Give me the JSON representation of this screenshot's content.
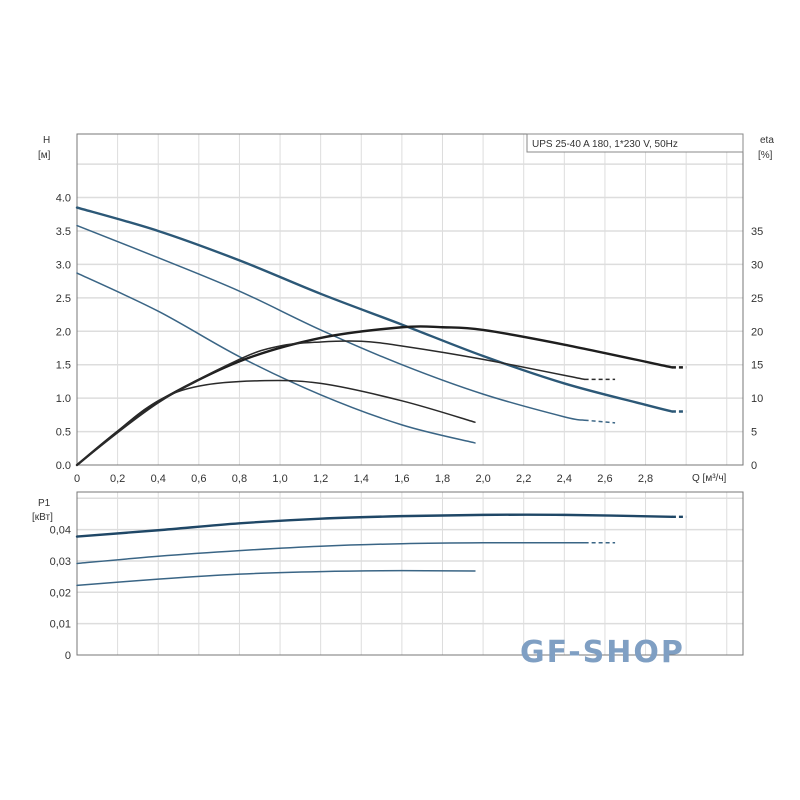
{
  "chart_data": [
    {
      "type": "line",
      "legend_box": "UPS 25-40 A 180, 1*230 V, 50Hz",
      "xlabel": "Q [м³/ч]",
      "ylabel": "H",
      "ylabel_unit": "[м]",
      "y2label": "eta",
      "y2label_unit": "[%]",
      "xlim": [
        0,
        3.28
      ],
      "ylim": [
        0,
        4.95
      ],
      "y2lim": [
        0,
        49.5
      ],
      "grid": true,
      "x_ticks": [
        "0",
        "0,2",
        "0,4",
        "0,6",
        "0,8",
        "1,0",
        "1,2",
        "1,4",
        "1,6",
        "1,8",
        "2,0",
        "2,2",
        "2,4",
        "2,6",
        "2,8"
      ],
      "y_ticks": [
        "0.0",
        "0.5",
        "1.0",
        "1.5",
        "2.0",
        "2.5",
        "3.0",
        "3.5",
        "4.0"
      ],
      "y2_ticks": [
        "0",
        "5",
        "10",
        "15",
        "20",
        "25",
        "30",
        "35"
      ],
      "series": [
        {
          "axis": "H",
          "color": "#2c5877",
          "width": 2.4,
          "points": [
            [
              0,
              3.85
            ],
            [
              0.4,
              3.5
            ],
            [
              0.8,
              3.06
            ],
            [
              1.2,
              2.56
            ],
            [
              1.6,
              2.1
            ],
            [
              2.0,
              1.63
            ],
            [
              2.4,
              1.22
            ],
            [
              2.8,
              0.9
            ],
            [
              2.93,
              0.8
            ]
          ],
          "dashed_to": [
            3.0,
            0.8
          ]
        },
        {
          "axis": "H",
          "color": "#3a6585",
          "width": 1.5,
          "points": [
            [
              0,
              3.58
            ],
            [
              0.4,
              3.1
            ],
            [
              0.8,
              2.6
            ],
            [
              1.2,
              2.02
            ],
            [
              1.6,
              1.5
            ],
            [
              2.0,
              1.06
            ],
            [
              2.4,
              0.72
            ],
            [
              2.5,
              0.67
            ]
          ],
          "dashed_to": [
            2.65,
            0.63
          ]
        },
        {
          "axis": "H",
          "color": "#3a6585",
          "width": 1.5,
          "points": [
            [
              0,
              2.87
            ],
            [
              0.4,
              2.3
            ],
            [
              0.8,
              1.62
            ],
            [
              1.2,
              1.05
            ],
            [
              1.6,
              0.6
            ],
            [
              1.96,
              0.33
            ]
          ]
        },
        {
          "axis": "eta",
          "color": "#1e1e1e",
          "width": 2.4,
          "points": [
            [
              0,
              0
            ],
            [
              0.2,
              5
            ],
            [
              0.4,
              9.5
            ],
            [
              0.8,
              15.5
            ],
            [
              1.2,
              19
            ],
            [
              1.6,
              20.6
            ],
            [
              1.8,
              20.6
            ],
            [
              2.0,
              20.2
            ],
            [
              2.4,
              18
            ],
            [
              2.93,
              14.6
            ]
          ],
          "dashed_to": [
            3.0,
            14.6
          ]
        },
        {
          "axis": "eta",
          "color": "#2a2a2a",
          "width": 1.5,
          "points": [
            [
              0,
              0
            ],
            [
              0.4,
              9.3
            ],
            [
              0.8,
              15.8
            ],
            [
              1.0,
              17.8
            ],
            [
              1.2,
              18.4
            ],
            [
              1.4,
              18.5
            ],
            [
              1.6,
              17.8
            ],
            [
              2.0,
              15.8
            ],
            [
              2.5,
              12.8
            ]
          ],
          "dashed_to": [
            2.65,
            12.8
          ]
        },
        {
          "axis": "eta",
          "color": "#2a2a2a",
          "width": 1.5,
          "points": [
            [
              0,
              0
            ],
            [
              0.2,
              5
            ],
            [
              0.4,
              9.6
            ],
            [
              0.6,
              11.8
            ],
            [
              0.9,
              12.6
            ],
            [
              1.2,
              12.2
            ],
            [
              1.6,
              9.6
            ],
            [
              1.96,
              6.4
            ]
          ]
        }
      ]
    },
    {
      "type": "line",
      "ylabel": "P1",
      "ylabel_unit": "[кВт]",
      "xlim": [
        0,
        3.28
      ],
      "ylim": [
        0,
        0.052
      ],
      "grid": true,
      "y_ticks": [
        "0",
        "0,01",
        "0,02",
        "0,03",
        "0,04"
      ],
      "series": [
        {
          "color": "#1f4766",
          "width": 2.4,
          "points": [
            [
              0,
              0.0378
            ],
            [
              0.4,
              0.0398
            ],
            [
              0.8,
              0.042
            ],
            [
              1.2,
              0.0435
            ],
            [
              1.6,
              0.0443
            ],
            [
              2.0,
              0.0447
            ],
            [
              2.4,
              0.0447
            ],
            [
              2.93,
              0.0441
            ]
          ],
          "dashed_to": [
            3.0,
            0.0441
          ]
        },
        {
          "color": "#3a6585",
          "width": 1.5,
          "points": [
            [
              0,
              0.0292
            ],
            [
              0.4,
              0.0315
            ],
            [
              0.8,
              0.0333
            ],
            [
              1.2,
              0.0347
            ],
            [
              1.6,
              0.0355
            ],
            [
              2.0,
              0.0358
            ],
            [
              2.5,
              0.0358
            ]
          ],
          "dashed_to": [
            2.65,
            0.0358
          ]
        },
        {
          "color": "#3a6585",
          "width": 1.5,
          "points": [
            [
              0,
              0.0222
            ],
            [
              0.4,
              0.0242
            ],
            [
              0.8,
              0.0258
            ],
            [
              1.2,
              0.0266
            ],
            [
              1.6,
              0.0269
            ],
            [
              1.96,
              0.0268
            ]
          ]
        }
      ]
    }
  ],
  "watermark": "GF-SHOP"
}
